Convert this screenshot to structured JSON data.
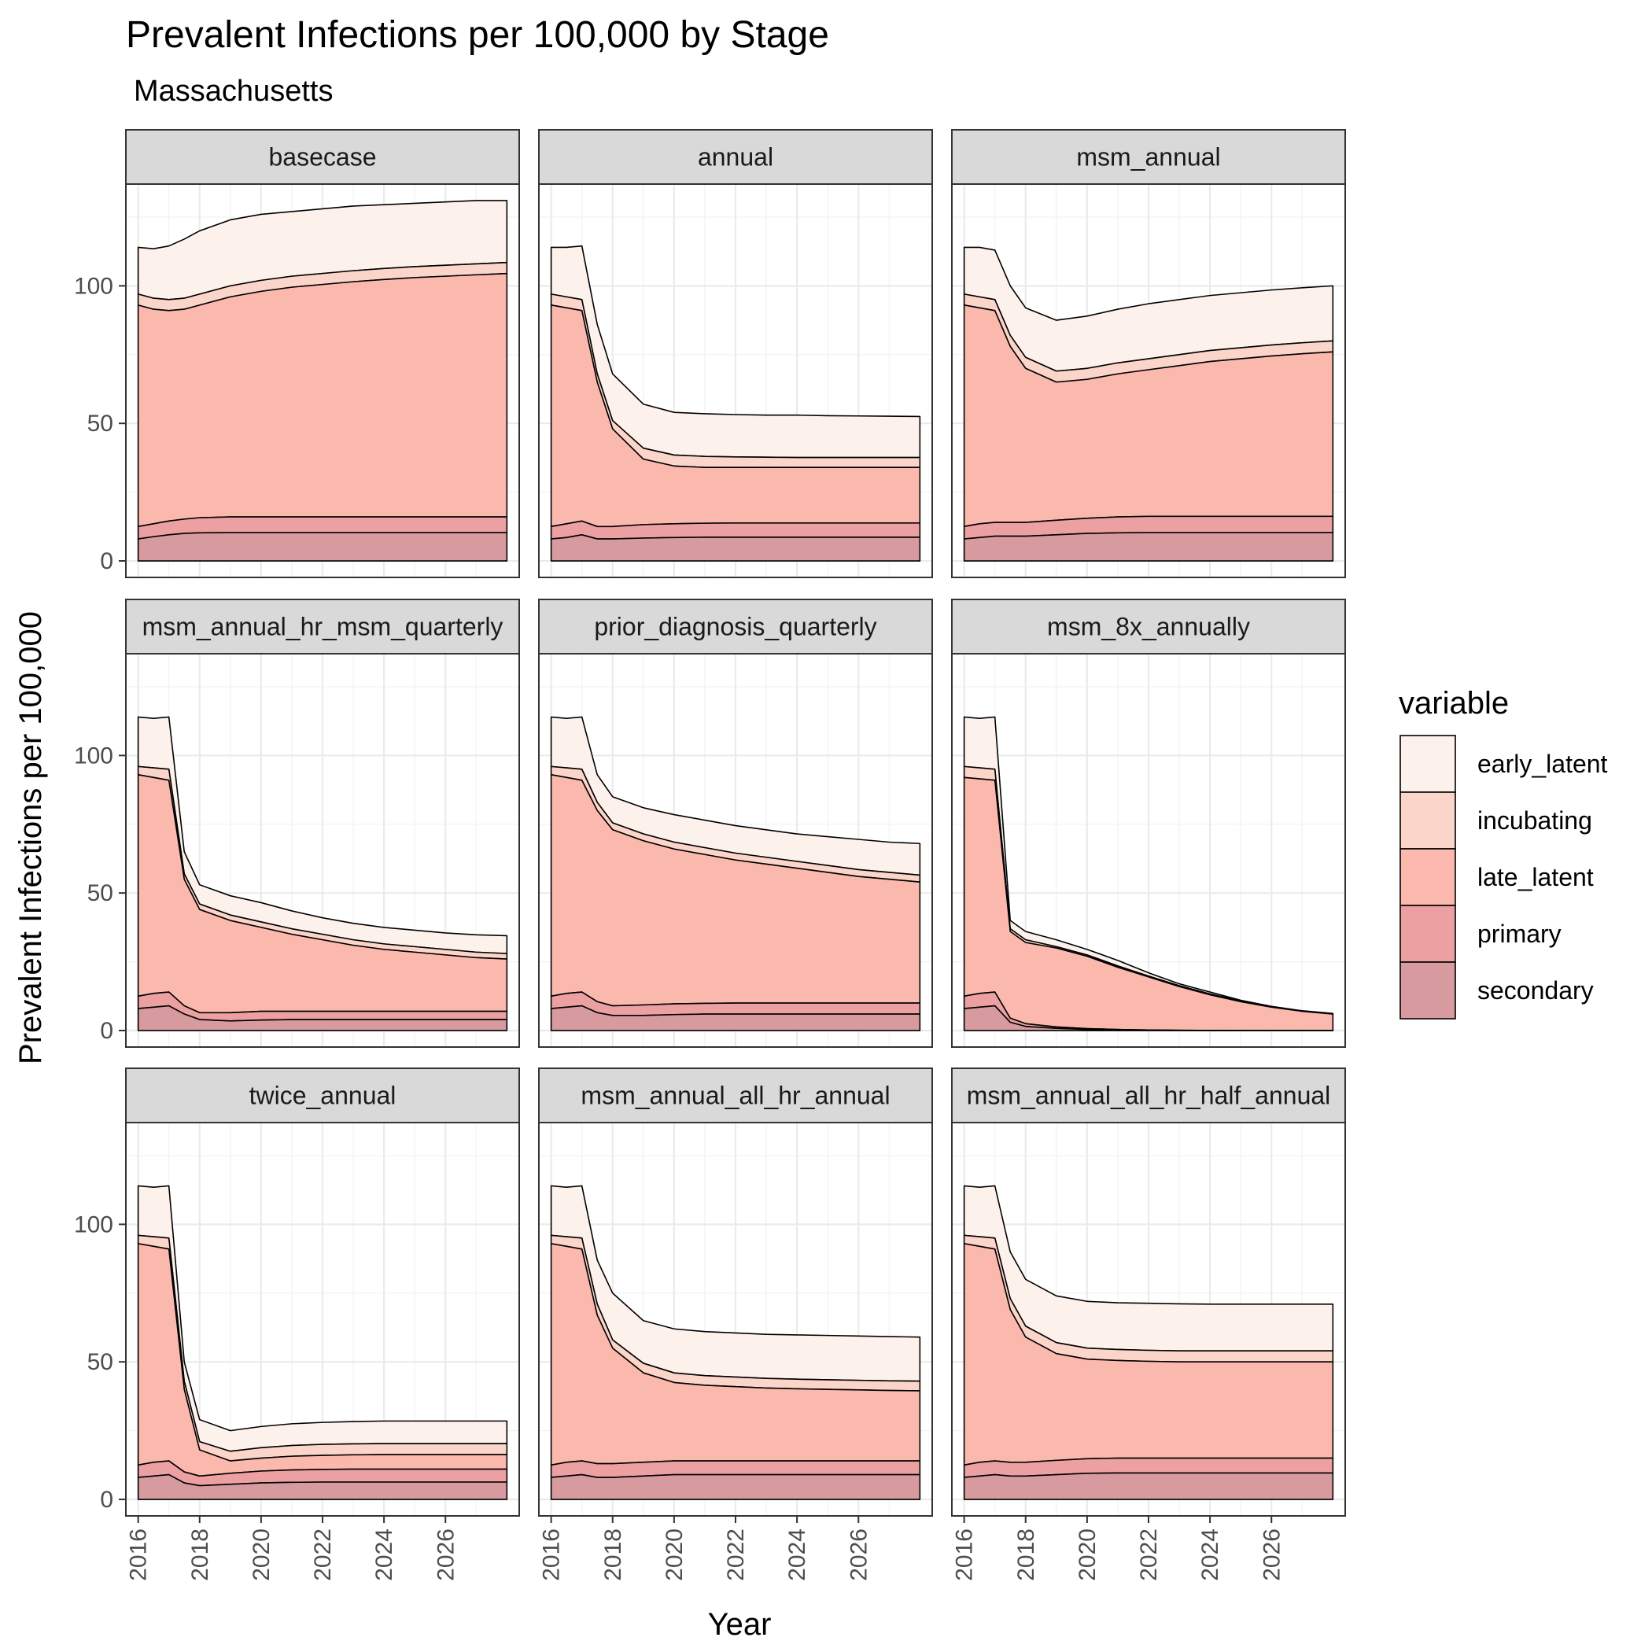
{
  "chart_data": {
    "type": "area",
    "stacked": true,
    "title": "Prevalent Infections per 100,000 by Stage",
    "subtitle": "Massachusetts",
    "xlabel": "Year",
    "ylabel": "Prevalent Infections per 100,000",
    "xlim": [
      2015.6,
      2028.4
    ],
    "ylim": [
      -6,
      137
    ],
    "x_ticks": [
      2016,
      2018,
      2020,
      2022,
      2024,
      2026
    ],
    "y_ticks": [
      0,
      50,
      100
    ],
    "grid": true,
    "legend": {
      "title": "variable",
      "position": "right",
      "entries": [
        "early_latent",
        "incubating",
        "late_latent",
        "primary",
        "secondary"
      ]
    },
    "colors": {
      "early_latent": "#fdf1ec",
      "incubating": "#fbd5c9",
      "late_latent": "#fbb9ae",
      "primary": "#eca0a2",
      "secondary": "#d69a9f",
      "outline": "#000000",
      "panel_border": "#333333",
      "grid": "#ebebeb",
      "strip_fill": "#d9d9d9"
    },
    "stack_order": [
      "secondary",
      "primary",
      "late_latent",
      "incubating",
      "early_latent"
    ],
    "x": [
      2016,
      2016.5,
      2017,
      2017.5,
      2018,
      2019,
      2020,
      2021,
      2022,
      2023,
      2024,
      2025,
      2026,
      2027,
      2028
    ],
    "panels": [
      {
        "name": "basecase",
        "cumulative": {
          "secondary": [
            8,
            8.8,
            9.5,
            10,
            10.2,
            10.3,
            10.3,
            10.3,
            10.3,
            10.3,
            10.3,
            10.3,
            10.3,
            10.3,
            10.3
          ],
          "primary": [
            12.5,
            13.5,
            14.5,
            15.2,
            15.7,
            16,
            16,
            16,
            16,
            16,
            16,
            16,
            16,
            16,
            16
          ],
          "late_latent": [
            93,
            91.5,
            91,
            91.5,
            93,
            96,
            98,
            99.5,
            100.5,
            101.5,
            102.3,
            103,
            103.5,
            104,
            104.5
          ],
          "incubating": [
            97,
            95.5,
            95,
            95.5,
            97,
            100,
            102,
            103.5,
            104.5,
            105.5,
            106.3,
            107,
            107.5,
            108,
            108.5
          ],
          "early_latent": [
            114,
            113.5,
            114.5,
            117,
            120,
            124,
            126,
            127,
            128,
            129,
            129.5,
            130,
            130.5,
            131,
            131
          ]
        }
      },
      {
        "name": "annual",
        "cumulative": {
          "secondary": [
            8,
            8.5,
            9.5,
            8,
            8,
            8.3,
            8.5,
            8.6,
            8.6,
            8.6,
            8.6,
            8.6,
            8.6,
            8.6,
            8.6
          ],
          "primary": [
            12.5,
            13.5,
            14.5,
            12.5,
            12.5,
            13.2,
            13.5,
            13.7,
            13.8,
            13.8,
            13.8,
            13.8,
            13.8,
            13.8,
            13.8
          ],
          "late_latent": [
            93,
            92,
            91,
            65,
            48,
            37,
            34.5,
            34,
            34,
            34,
            34,
            34,
            34,
            34,
            34
          ],
          "incubating": [
            97,
            96,
            95,
            68,
            51,
            41,
            38.5,
            38,
            37.8,
            37.7,
            37.6,
            37.6,
            37.6,
            37.6,
            37.6
          ],
          "early_latent": [
            114,
            114,
            114.5,
            86,
            68,
            57,
            54,
            53.5,
            53.2,
            53,
            53,
            52.8,
            52.7,
            52.6,
            52.5
          ]
        }
      },
      {
        "name": "msm_annual",
        "cumulative": {
          "secondary": [
            8,
            8.5,
            9,
            9,
            9,
            9.5,
            10,
            10.2,
            10.3,
            10.3,
            10.3,
            10.3,
            10.3,
            10.3,
            10.3
          ],
          "primary": [
            12.5,
            13.5,
            14,
            14,
            14,
            14.8,
            15.5,
            16,
            16.2,
            16.2,
            16.2,
            16.2,
            16.2,
            16.2,
            16.2
          ],
          "late_latent": [
            93,
            92,
            91,
            78,
            70,
            65,
            66,
            68,
            69.5,
            71,
            72.5,
            73.5,
            74.5,
            75.3,
            76
          ],
          "incubating": [
            97,
            96,
            95,
            82,
            74,
            69,
            70,
            72,
            73.5,
            75,
            76.5,
            77.5,
            78.5,
            79.3,
            80
          ],
          "early_latent": [
            114,
            114,
            113,
            100,
            92,
            87.5,
            89,
            91.5,
            93.5,
            95,
            96.5,
            97.5,
            98.5,
            99.3,
            100
          ]
        }
      },
      {
        "name": "msm_annual_hr_msm_quarterly",
        "cumulative": {
          "secondary": [
            8,
            8.5,
            9,
            6,
            4,
            3.5,
            3.8,
            4,
            4,
            4,
            4,
            4,
            4,
            4,
            4
          ],
          "primary": [
            12.5,
            13.5,
            14,
            9,
            6.5,
            6.5,
            7,
            7,
            7,
            7,
            7,
            7,
            7,
            7,
            7
          ],
          "late_latent": [
            93,
            92,
            91,
            55,
            44,
            40,
            37.5,
            35,
            33,
            31,
            29.5,
            28.5,
            27.5,
            26.5,
            26
          ],
          "incubating": [
            96,
            95.5,
            95,
            57,
            46,
            42,
            39.5,
            37,
            35,
            33,
            31.5,
            30.5,
            29.5,
            28.5,
            28
          ],
          "early_latent": [
            114,
            113.5,
            114,
            65,
            53,
            49,
            46.5,
            43.5,
            41,
            39,
            37.5,
            36.5,
            35.5,
            34.8,
            34.5
          ]
        }
      },
      {
        "name": "prior_diagnosis_quarterly",
        "cumulative": {
          "secondary": [
            8,
            8.5,
            9,
            6.5,
            5.5,
            5.5,
            5.8,
            6,
            6,
            6,
            6,
            6,
            6,
            6,
            6
          ],
          "primary": [
            12.5,
            13.5,
            14,
            10.5,
            9,
            9.3,
            9.7,
            9.9,
            10,
            10,
            10,
            10,
            10,
            10,
            10
          ],
          "late_latent": [
            93,
            92,
            91,
            80,
            73,
            69,
            66,
            64,
            62,
            60.5,
            59,
            57.5,
            56,
            55,
            54
          ],
          "incubating": [
            96,
            95.5,
            95,
            83,
            75.5,
            71.5,
            68.5,
            66.5,
            64.5,
            63,
            61.5,
            60,
            58.5,
            57.5,
            56.5
          ],
          "early_latent": [
            114,
            113.5,
            114,
            93,
            85,
            81,
            78.5,
            76.5,
            74.5,
            73,
            71.5,
            70.5,
            69.5,
            68.5,
            68
          ]
        }
      },
      {
        "name": "msm_8x_annually",
        "cumulative": {
          "secondary": [
            8,
            8.5,
            9,
            3,
            1.5,
            0.8,
            0.4,
            0.2,
            0.1,
            0.05,
            0,
            0,
            0,
            0,
            0
          ],
          "primary": [
            12.5,
            13.5,
            14,
            4.5,
            2.5,
            1.3,
            0.7,
            0.4,
            0.2,
            0.1,
            0.05,
            0,
            0,
            0,
            0
          ],
          "late_latent": [
            92,
            91.5,
            91,
            36,
            32,
            30,
            27,
            23,
            19.5,
            16,
            13,
            10.5,
            8.5,
            7,
            6
          ],
          "incubating": [
            96,
            95.5,
            95,
            37,
            33,
            30.5,
            27.5,
            23.5,
            19.8,
            16.3,
            13.3,
            10.7,
            8.7,
            7.1,
            6.1
          ],
          "early_latent": [
            114,
            113.5,
            114,
            40,
            36,
            33,
            29.5,
            25.5,
            21,
            17,
            14,
            11,
            8.8,
            7.2,
            6.2
          ]
        }
      },
      {
        "name": "twice_annual",
        "cumulative": {
          "secondary": [
            8,
            8.5,
            9,
            6,
            5,
            5.5,
            6,
            6.2,
            6.3,
            6.3,
            6.3,
            6.3,
            6.3,
            6.3,
            6.3
          ],
          "primary": [
            12.5,
            13.5,
            14,
            10,
            8.5,
            9.5,
            10.3,
            10.7,
            10.9,
            11,
            11,
            11,
            11,
            11,
            11
          ],
          "late_latent": [
            93,
            92,
            91,
            40,
            18,
            14,
            15,
            15.7,
            16,
            16.2,
            16.3,
            16.3,
            16.3,
            16.3,
            16.3
          ],
          "incubating": [
            96,
            95.5,
            95,
            43,
            21,
            17.5,
            18.8,
            19.6,
            20,
            20.2,
            20.3,
            20.3,
            20.3,
            20.3,
            20.3
          ],
          "early_latent": [
            114,
            113.5,
            114,
            50,
            29,
            25,
            26.5,
            27.5,
            28,
            28.3,
            28.5,
            28.5,
            28.5,
            28.5,
            28.5
          ]
        }
      },
      {
        "name": "msm_annual_all_hr_annual",
        "cumulative": {
          "secondary": [
            8,
            8.5,
            9,
            8,
            8,
            8.5,
            9,
            9,
            9,
            9,
            9,
            9,
            9,
            9,
            9
          ],
          "primary": [
            12.5,
            13.5,
            14,
            13,
            13,
            13.5,
            14,
            14,
            14,
            14,
            14,
            14,
            14,
            14,
            14
          ],
          "late_latent": [
            93,
            92,
            91,
            67,
            55,
            46,
            42.5,
            41.5,
            41,
            40.5,
            40.2,
            40,
            39.8,
            39.6,
            39.5
          ],
          "incubating": [
            96,
            95.5,
            95,
            71,
            58,
            49.5,
            46,
            45,
            44.5,
            44,
            43.7,
            43.5,
            43.3,
            43.1,
            43
          ],
          "early_latent": [
            114,
            113.5,
            114,
            87,
            75,
            65,
            62,
            61,
            60.5,
            60,
            59.8,
            59.6,
            59.4,
            59.2,
            59
          ]
        }
      },
      {
        "name": "msm_annual_all_hr_half_annual",
        "cumulative": {
          "secondary": [
            8,
            8.5,
            9,
            8.5,
            8.5,
            9,
            9.5,
            9.6,
            9.6,
            9.6,
            9.6,
            9.6,
            9.6,
            9.6,
            9.6
          ],
          "primary": [
            12.5,
            13.5,
            14,
            13.5,
            13.5,
            14.2,
            14.8,
            15,
            15,
            15,
            15,
            15,
            15,
            15,
            15
          ],
          "late_latent": [
            93,
            92,
            91,
            69,
            59,
            53,
            51,
            50.5,
            50.2,
            50,
            50,
            50,
            50,
            50,
            50
          ],
          "incubating": [
            96,
            95.5,
            95,
            73,
            63,
            57,
            55,
            54.5,
            54.2,
            54,
            54,
            54,
            54,
            54,
            54
          ],
          "early_latent": [
            114,
            113.5,
            114,
            90,
            80,
            74,
            72,
            71.5,
            71.3,
            71.1,
            71,
            71,
            71,
            71,
            71
          ]
        }
      }
    ]
  }
}
